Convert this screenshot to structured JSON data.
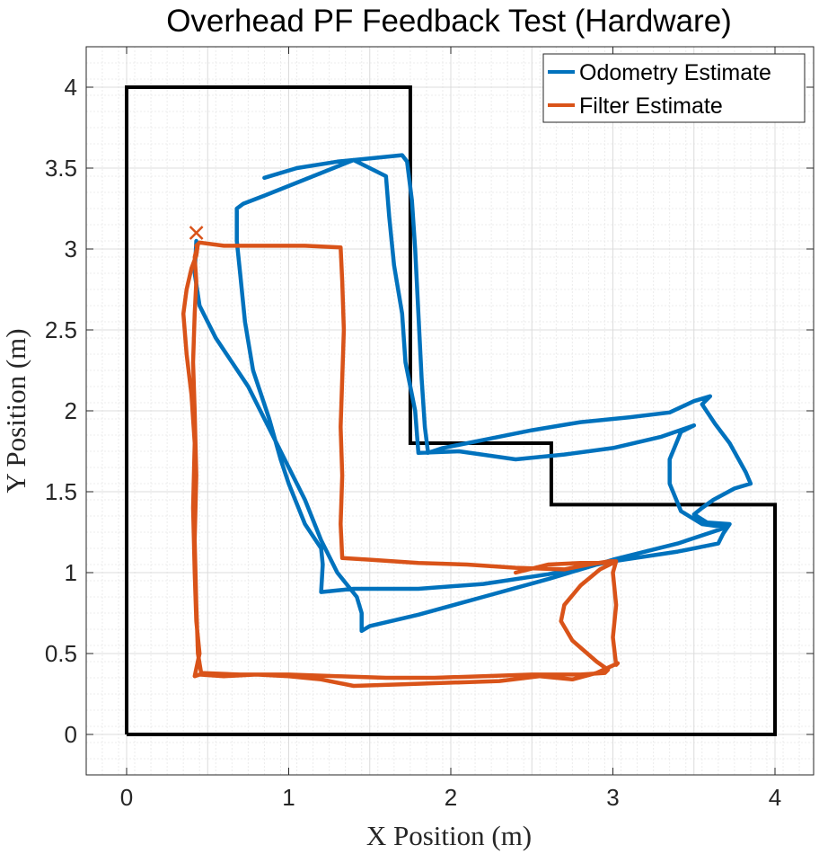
{
  "chart_data": {
    "type": "line",
    "title": "Overhead PF Feedback Test (Hardware)",
    "xlabel": "X Position (m)",
    "ylabel": "Y Position (m)",
    "xlim": [
      -0.25,
      4.25
    ],
    "ylim": [
      -0.25,
      4.25
    ],
    "xticks": [
      0,
      1,
      2,
      3,
      4
    ],
    "yticks": [
      0,
      0.5,
      1,
      1.5,
      2,
      2.5,
      3,
      3.5,
      4
    ],
    "xtick_labels": [
      "0",
      "1",
      "2",
      "3",
      "4"
    ],
    "ytick_labels": [
      "0",
      "0.5",
      "1",
      "1.5",
      "2",
      "2.5",
      "3",
      "3.5",
      "4"
    ],
    "grid": true,
    "minor_grid": true,
    "legend_position": "top-right",
    "boundary": {
      "color": "#000000",
      "points": [
        [
          0,
          0
        ],
        [
          0,
          4
        ],
        [
          1.75,
          4
        ],
        [
          1.75,
          1.8
        ],
        [
          2.62,
          1.8
        ],
        [
          2.62,
          1.42
        ],
        [
          4,
          1.42
        ],
        [
          4,
          0
        ],
        [
          0,
          0
        ]
      ]
    },
    "series": [
      {
        "name": "Odometry Estimate",
        "color": "#0072BD",
        "points": [
          [
            0.85,
            3.44
          ],
          [
            1.05,
            3.5
          ],
          [
            1.3,
            3.54
          ],
          [
            1.5,
            3.56
          ],
          [
            1.7,
            3.58
          ],
          [
            1.73,
            3.54
          ],
          [
            1.76,
            3.3
          ],
          [
            1.78,
            3.0
          ],
          [
            1.8,
            2.6
          ],
          [
            1.82,
            2.2
          ],
          [
            1.84,
            1.9
          ],
          [
            1.86,
            1.74
          ],
          [
            1.95,
            1.77
          ],
          [
            2.2,
            1.82
          ],
          [
            2.5,
            1.88
          ],
          [
            2.8,
            1.93
          ],
          [
            3.1,
            1.96
          ],
          [
            3.35,
            1.99
          ],
          [
            3.5,
            2.06
          ],
          [
            3.6,
            2.09
          ],
          [
            3.55,
            2.04
          ],
          [
            3.63,
            1.92
          ],
          [
            3.72,
            1.8
          ],
          [
            3.82,
            1.62
          ],
          [
            3.85,
            1.55
          ],
          [
            3.75,
            1.52
          ],
          [
            3.62,
            1.45
          ],
          [
            3.55,
            1.4
          ],
          [
            3.5,
            1.36
          ],
          [
            3.58,
            1.31
          ],
          [
            3.72,
            1.3
          ],
          [
            3.68,
            1.24
          ],
          [
            3.65,
            1.18
          ],
          [
            3.4,
            1.13
          ],
          [
            3.0,
            1.07
          ],
          [
            2.6,
            0.99
          ],
          [
            2.2,
            0.93
          ],
          [
            1.8,
            0.9
          ],
          [
            1.4,
            0.9
          ],
          [
            1.2,
            0.88
          ],
          [
            1.21,
            1.05
          ],
          [
            1.2,
            1.15
          ],
          [
            1.1,
            1.3
          ],
          [
            1.0,
            1.55
          ],
          [
            0.95,
            1.7
          ],
          [
            0.88,
            1.95
          ],
          [
            0.78,
            2.25
          ],
          [
            0.73,
            2.55
          ],
          [
            0.7,
            2.85
          ],
          [
            0.68,
            3.05
          ],
          [
            0.68,
            3.25
          ],
          [
            0.72,
            3.28
          ],
          [
            0.85,
            3.33
          ],
          [
            1.1,
            3.43
          ],
          [
            1.4,
            3.55
          ],
          [
            1.6,
            3.45
          ],
          [
            1.62,
            3.2
          ],
          [
            1.65,
            2.9
          ],
          [
            1.7,
            2.6
          ],
          [
            1.72,
            2.3
          ],
          [
            1.78,
            2.0
          ],
          [
            1.8,
            1.74
          ],
          [
            2.05,
            1.75
          ],
          [
            2.4,
            1.7
          ],
          [
            2.7,
            1.73
          ],
          [
            3.0,
            1.77
          ],
          [
            3.3,
            1.84
          ],
          [
            3.5,
            1.91
          ],
          [
            3.42,
            1.87
          ],
          [
            3.35,
            1.7
          ],
          [
            3.35,
            1.55
          ],
          [
            3.42,
            1.38
          ],
          [
            3.55,
            1.3
          ],
          [
            3.7,
            1.28
          ],
          [
            3.4,
            1.18
          ],
          [
            3.0,
            1.08
          ],
          [
            2.6,
            0.96
          ],
          [
            2.2,
            0.85
          ],
          [
            1.8,
            0.74
          ],
          [
            1.5,
            0.67
          ],
          [
            1.45,
            0.64
          ],
          [
            1.45,
            0.75
          ],
          [
            1.42,
            0.85
          ],
          [
            1.3,
            1.0
          ],
          [
            1.2,
            1.2
          ],
          [
            1.1,
            1.45
          ],
          [
            1.0,
            1.65
          ],
          [
            0.9,
            1.85
          ],
          [
            0.75,
            2.15
          ],
          [
            0.55,
            2.45
          ],
          [
            0.45,
            2.65
          ],
          [
            0.42,
            2.85
          ],
          [
            0.43,
            3.05
          ]
        ]
      },
      {
        "name": "Filter Estimate",
        "color": "#D95319",
        "points": [
          [
            0.43,
            3.02
          ],
          [
            0.45,
            3.04
          ],
          [
            0.6,
            3.02
          ],
          [
            0.9,
            3.02
          ],
          [
            1.1,
            3.02
          ],
          [
            1.32,
            3.01
          ],
          [
            1.33,
            2.8
          ],
          [
            1.34,
            2.5
          ],
          [
            1.33,
            2.2
          ],
          [
            1.32,
            1.9
          ],
          [
            1.33,
            1.6
          ],
          [
            1.32,
            1.3
          ],
          [
            1.33,
            1.09
          ],
          [
            1.5,
            1.08
          ],
          [
            1.8,
            1.06
          ],
          [
            2.1,
            1.05
          ],
          [
            2.4,
            1.03
          ],
          [
            2.7,
            1.02
          ],
          [
            2.85,
            1.05
          ],
          [
            2.98,
            1.07
          ],
          [
            3.02,
            1.07
          ],
          [
            3.0,
            1.0
          ],
          [
            3.02,
            0.8
          ],
          [
            3.0,
            0.6
          ],
          [
            3.02,
            0.43
          ],
          [
            3.03,
            0.44
          ],
          [
            2.9,
            0.38
          ],
          [
            2.75,
            0.34
          ],
          [
            2.55,
            0.36
          ],
          [
            2.3,
            0.33
          ],
          [
            2.0,
            0.32
          ],
          [
            1.7,
            0.31
          ],
          [
            1.4,
            0.3
          ],
          [
            1.2,
            0.34
          ],
          [
            1.0,
            0.36
          ],
          [
            0.8,
            0.37
          ],
          [
            0.6,
            0.36
          ],
          [
            0.45,
            0.37
          ],
          [
            0.42,
            0.36
          ],
          [
            0.45,
            0.5
          ],
          [
            0.43,
            0.7
          ],
          [
            0.42,
            1.0
          ],
          [
            0.41,
            1.4
          ],
          [
            0.42,
            1.8
          ],
          [
            0.4,
            2.1
          ],
          [
            0.37,
            2.35
          ],
          [
            0.35,
            2.6
          ],
          [
            0.37,
            2.75
          ],
          [
            0.4,
            2.88
          ],
          [
            0.43,
            2.96
          ],
          [
            0.44,
            3.03
          ],
          [
            0.42,
            2.95
          ],
          [
            0.43,
            2.8
          ],
          [
            0.42,
            2.6
          ],
          [
            0.41,
            2.3
          ],
          [
            0.42,
            2.0
          ],
          [
            0.43,
            1.6
          ],
          [
            0.42,
            1.2
          ],
          [
            0.43,
            0.8
          ],
          [
            0.44,
            0.5
          ],
          [
            0.46,
            0.38
          ],
          [
            0.7,
            0.37
          ],
          [
            1.0,
            0.37
          ],
          [
            1.3,
            0.36
          ],
          [
            1.6,
            0.35
          ],
          [
            1.9,
            0.35
          ],
          [
            2.2,
            0.36
          ],
          [
            2.5,
            0.37
          ],
          [
            2.8,
            0.37
          ],
          [
            2.95,
            0.38
          ],
          [
            2.97,
            0.4
          ],
          [
            2.9,
            0.45
          ],
          [
            2.75,
            0.58
          ],
          [
            2.68,
            0.7
          ],
          [
            2.7,
            0.8
          ],
          [
            2.8,
            0.92
          ],
          [
            2.92,
            1.02
          ],
          [
            3.0,
            1.06
          ],
          [
            2.8,
            1.06
          ],
          [
            2.6,
            1.05
          ],
          [
            2.4,
            1.0
          ]
        ],
        "end_marker": {
          "point": [
            0.43,
            3.1
          ],
          "symbol": "x"
        }
      }
    ]
  }
}
